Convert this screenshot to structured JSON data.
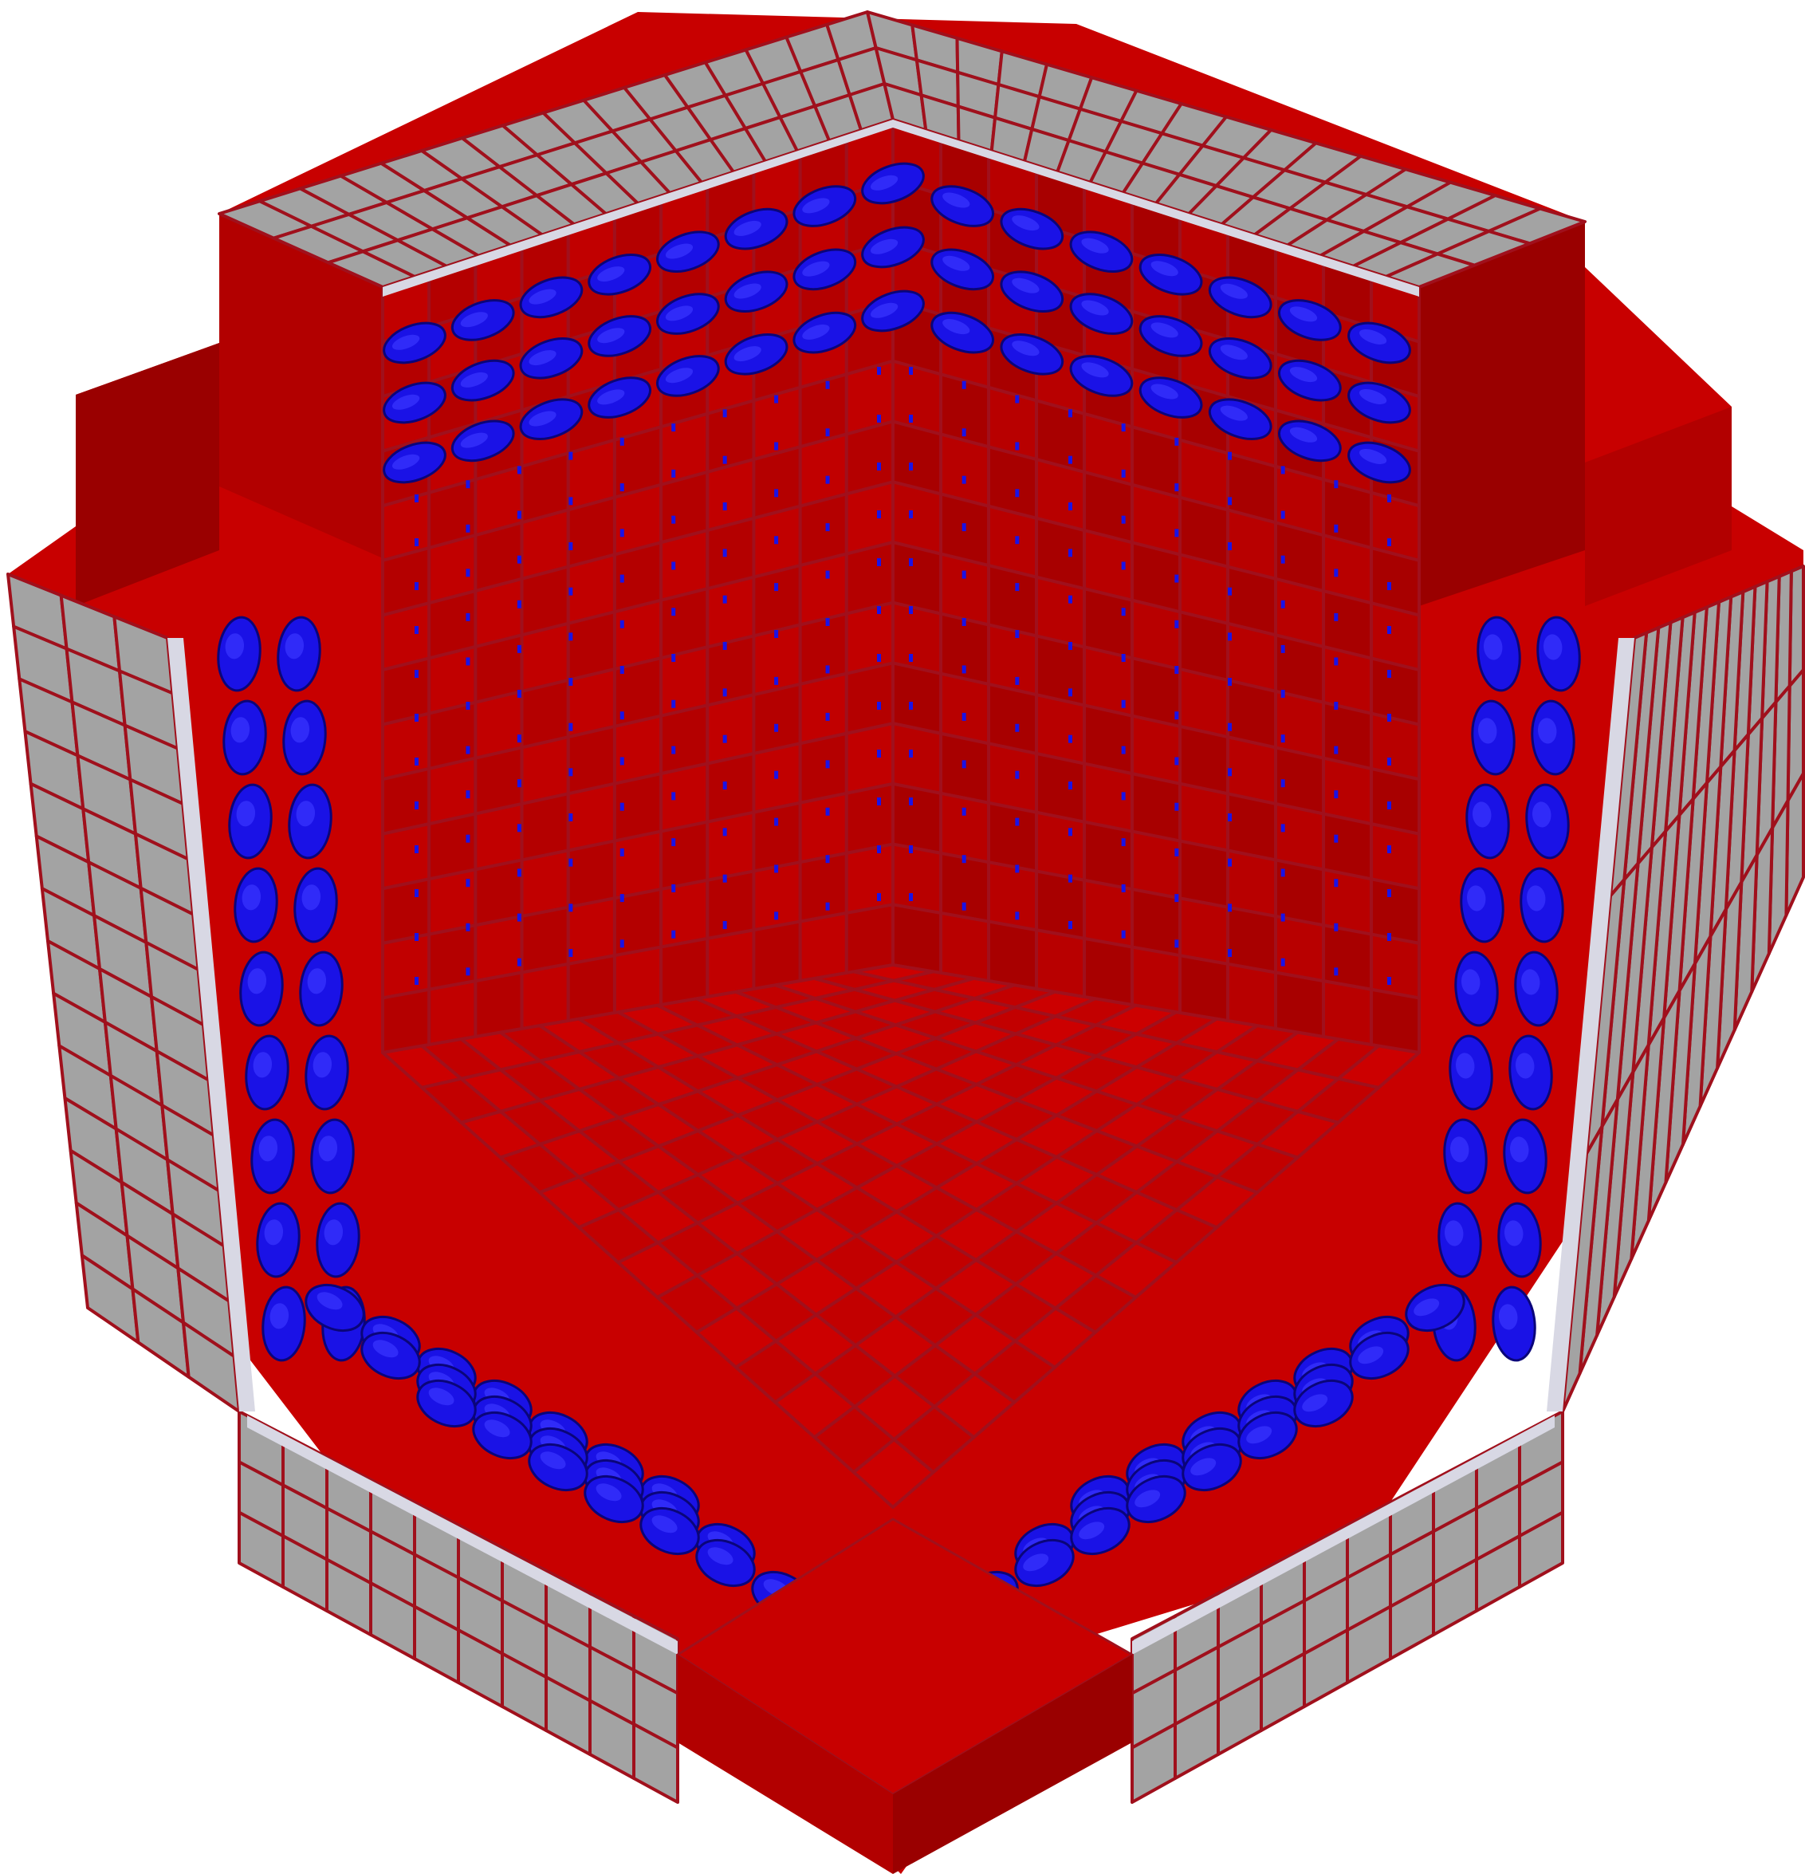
{
  "scene": {
    "subject": "voxel-cube-cutaway",
    "colors": {
      "background": "#ffffff",
      "voxel_red_top": "#c80000",
      "voxel_red_left": "#b20000",
      "voxel_red_right": "#9a0000",
      "grid_line": "#a0101c",
      "gray_face": "#a3a3a3",
      "gray_face_light": "#d8d8e4",
      "particle_blue": "#1a12e6",
      "particle_blue_dark": "#0a057a"
    },
    "components": [
      {
        "name": "outer-voxel-shell",
        "color": "gray_face"
      },
      {
        "name": "interior-red-cells",
        "color": "voxel_red_top"
      },
      {
        "name": "blue-particles",
        "color": "particle_blue"
      },
      {
        "name": "front-corner-block",
        "color": "voxel_red_right"
      }
    ]
  }
}
